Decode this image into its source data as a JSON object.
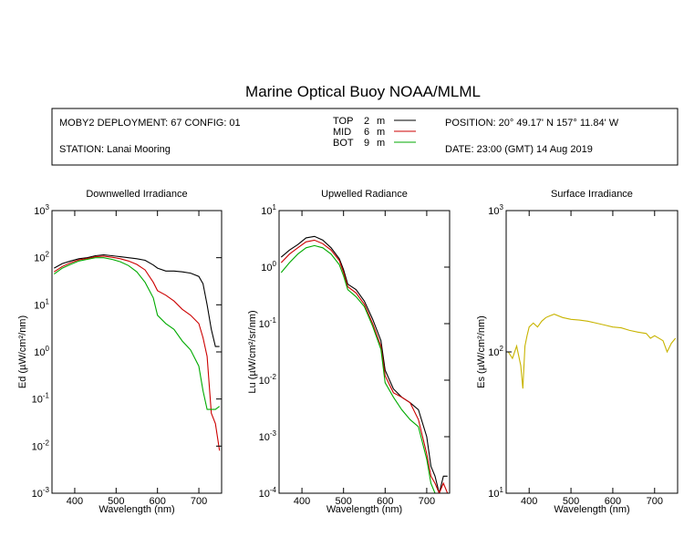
{
  "title": "Marine Optical Buoy NOAA/MLML",
  "info": {
    "deployment": "MOBY2 DEPLOYMENT: 67 CONFIG: 01",
    "station": "STATION: Lanai Mooring",
    "position": "POSITION: 20° 49.17' N   157° 11.84' W",
    "date": "DATE: 23:00 (GMT) 14 Aug 2019",
    "legend": [
      {
        "name": "TOP",
        "depth": "2",
        "unit": "m",
        "color": "#000000"
      },
      {
        "name": "MID",
        "depth": "6",
        "unit": "m",
        "color": "#cc0000"
      },
      {
        "name": "BOT",
        "depth": "9",
        "unit": "m",
        "color": "#00aa00"
      }
    ]
  },
  "colors": {
    "top": "#000000",
    "mid": "#cc0000",
    "bot": "#00aa00",
    "surface": "#c8b400"
  },
  "chart_data": [
    {
      "type": "line",
      "title": "Downwelled Irradiance",
      "xlabel": "Wavelength (nm)",
      "ylabel": "Ed  (µW/cm²/nm)",
      "xlim": [
        345,
        755
      ],
      "ylim": [
        0.001,
        1000
      ],
      "yscale": "log",
      "xticks": [
        400,
        500,
        600,
        700
      ],
      "yticks": [
        {
          "base": "10",
          "exp": "-3",
          "v": 0.001
        },
        {
          "base": "10",
          "exp": "-2",
          "v": 0.01
        },
        {
          "base": "10",
          "exp": "-1",
          "v": 0.1
        },
        {
          "base": "10",
          "exp": "0",
          "v": 1
        },
        {
          "base": "10",
          "exp": "1",
          "v": 10
        },
        {
          "base": "10",
          "exp": "2",
          "v": 100
        },
        {
          "base": "10",
          "exp": "3",
          "v": 1000
        }
      ],
      "series": [
        {
          "name": "TOP",
          "color": "#000000",
          "x": [
            350,
            370,
            390,
            410,
            430,
            450,
            470,
            490,
            510,
            530,
            550,
            570,
            590,
            600,
            620,
            640,
            660,
            680,
            700,
            710,
            720,
            730,
            740,
            750
          ],
          "values": [
            60,
            75,
            85,
            95,
            100,
            110,
            115,
            110,
            105,
            100,
            95,
            88,
            70,
            60,
            52,
            52,
            50,
            47,
            40,
            28,
            10,
            3,
            1.3,
            1.3
          ]
        },
        {
          "name": "MID",
          "color": "#cc0000",
          "x": [
            350,
            370,
            390,
            410,
            430,
            450,
            470,
            490,
            510,
            530,
            550,
            570,
            590,
            600,
            620,
            640,
            660,
            680,
            700,
            710,
            720,
            725,
            730,
            740,
            750
          ],
          "values": [
            50,
            65,
            78,
            90,
            96,
            105,
            108,
            102,
            95,
            85,
            72,
            55,
            30,
            20,
            16,
            12,
            8,
            6,
            4,
            2,
            0.8,
            0.2,
            0.05,
            0.03,
            0.008
          ]
        },
        {
          "name": "BOT",
          "color": "#00aa00",
          "x": [
            350,
            370,
            390,
            410,
            430,
            450,
            470,
            490,
            510,
            530,
            550,
            570,
            590,
            600,
            620,
            640,
            660,
            680,
            700,
            710,
            720,
            730,
            740,
            750
          ],
          "values": [
            45,
            60,
            72,
            85,
            92,
            100,
            100,
            92,
            82,
            68,
            50,
            30,
            14,
            6,
            4,
            3,
            1.7,
            1.1,
            0.5,
            0.15,
            0.06,
            0.06,
            0.06,
            0.07
          ]
        }
      ]
    },
    {
      "type": "line",
      "title": "Upwelled Radiance",
      "xlabel": "Wavelength (nm)",
      "ylabel": "Lu  (µW/cm²/sr/nm)",
      "xlim": [
        345,
        755
      ],
      "ylim": [
        0.0001,
        10
      ],
      "yscale": "log",
      "xticks": [
        400,
        500,
        600,
        700
      ],
      "yticks": [
        {
          "base": "10",
          "exp": "-4",
          "v": 0.0001
        },
        {
          "base": "10",
          "exp": "-3",
          "v": 0.001
        },
        {
          "base": "10",
          "exp": "-2",
          "v": 0.01
        },
        {
          "base": "10",
          "exp": "-1",
          "v": 0.1
        },
        {
          "base": "10",
          "exp": "0",
          "v": 1
        },
        {
          "base": "10",
          "exp": "1",
          "v": 10
        }
      ],
      "series": [
        {
          "name": "TOP",
          "color": "#000000",
          "x": [
            350,
            370,
            390,
            410,
            430,
            450,
            470,
            490,
            500,
            510,
            530,
            550,
            570,
            590,
            600,
            620,
            640,
            660,
            680,
            700,
            710,
            720,
            730,
            740,
            750
          ],
          "values": [
            1.5,
            2,
            2.5,
            3.3,
            3.5,
            3,
            2.2,
            1.4,
            0.9,
            0.5,
            0.4,
            0.25,
            0.12,
            0.05,
            0.015,
            0.007,
            0.005,
            0.004,
            0.003,
            0.001,
            0.0003,
            0.0002,
            0.0001,
            0.0002,
            0.0002
          ]
        },
        {
          "name": "MID",
          "color": "#cc0000",
          "x": [
            350,
            370,
            390,
            410,
            430,
            450,
            470,
            490,
            500,
            510,
            530,
            550,
            570,
            590,
            600,
            620,
            640,
            660,
            680,
            700,
            710,
            720,
            730,
            740,
            750
          ],
          "values": [
            1.2,
            1.7,
            2.2,
            2.8,
            3,
            2.6,
            2,
            1.3,
            0.8,
            0.45,
            0.35,
            0.22,
            0.1,
            0.04,
            0.012,
            0.006,
            0.005,
            0.004,
            0.002,
            0.0005,
            0.0002,
            0.00015,
            0.0001,
            0.00015,
            0.0001
          ]
        },
        {
          "name": "BOT",
          "color": "#00aa00",
          "x": [
            350,
            370,
            390,
            410,
            430,
            450,
            470,
            490,
            500,
            510,
            530,
            550,
            570,
            590,
            600,
            620,
            640,
            660,
            680,
            700,
            710,
            720,
            730
          ],
          "values": [
            0.8,
            1.2,
            1.7,
            2.2,
            2.4,
            2.2,
            1.7,
            1.1,
            0.7,
            0.4,
            0.3,
            0.2,
            0.09,
            0.035,
            0.009,
            0.005,
            0.003,
            0.002,
            0.0015,
            0.0004,
            0.00015,
            0.0001,
            0.0001
          ]
        }
      ]
    },
    {
      "type": "line",
      "title": "Surface Irradiance",
      "xlabel": "Wavelength (nm)",
      "ylabel": "Es  (µW/cm²/nm)",
      "xlim": [
        345,
        755
      ],
      "ylim": [
        10,
        1000
      ],
      "yscale": "log",
      "xticks": [
        400,
        500,
        600,
        700
      ],
      "yticks": [
        {
          "base": "10",
          "exp": "1",
          "v": 10
        },
        {
          "base": "10",
          "exp": "2",
          "v": 100
        },
        {
          "base": "10",
          "exp": "3",
          "v": 1000
        }
      ],
      "series": [
        {
          "name": "Es",
          "color": "#c8b400",
          "x": [
            350,
            360,
            370,
            380,
            385,
            390,
            395,
            400,
            410,
            420,
            430,
            440,
            450,
            460,
            480,
            500,
            520,
            540,
            560,
            580,
            600,
            620,
            640,
            660,
            680,
            690,
            700,
            720,
            730,
            740,
            750
          ],
          "values": [
            100,
            90,
            110,
            80,
            55,
            110,
            130,
            150,
            160,
            150,
            165,
            175,
            180,
            185,
            175,
            170,
            168,
            165,
            160,
            155,
            150,
            148,
            142,
            138,
            135,
            125,
            130,
            120,
            100,
            115,
            125
          ]
        }
      ]
    }
  ]
}
